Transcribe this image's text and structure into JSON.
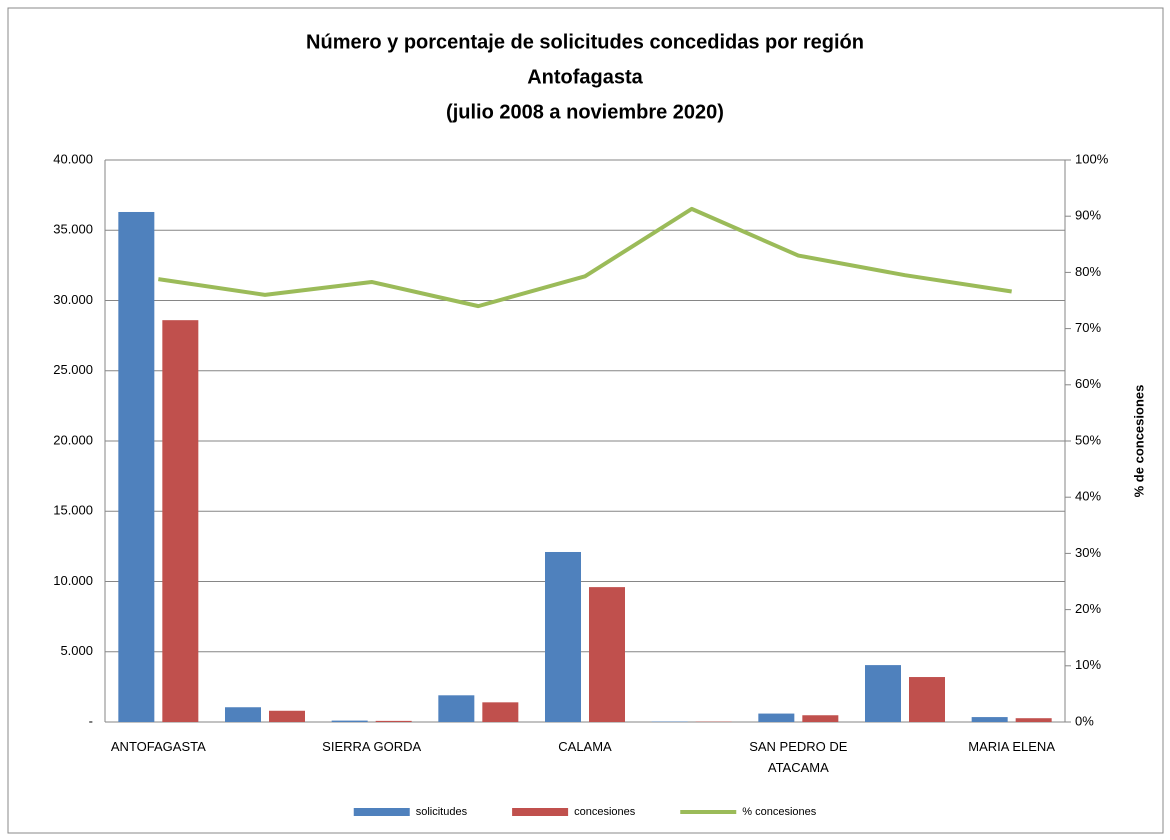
{
  "chart_data": {
    "type": "bar",
    "title": [
      "Número y porcentaje de solicitudes concedidas por región",
      "Antofagasta",
      "(julio 2008 a  noviembre 2020)"
    ],
    "y2_label": "% de concesiones",
    "categories": [
      "ANTOFAGASTA",
      null,
      "SIERRA GORDA",
      null,
      "CALAMA",
      null,
      "SAN PEDRO DE ATACAMA",
      null,
      "MARIA ELENA"
    ],
    "series": [
      {
        "name": "solicitudes",
        "type": "bar",
        "color": "#4f81bd",
        "values": [
          36300,
          1050,
          100,
          1900,
          12100,
          30,
          600,
          4050,
          350
        ]
      },
      {
        "name": "concesiones",
        "type": "bar",
        "color": "#c0504d",
        "values": [
          28600,
          800,
          80,
          1400,
          9600,
          25,
          480,
          3200,
          270
        ]
      },
      {
        "name": "% concesiones",
        "type": "line",
        "axis": "y2",
        "color": "#9bbb59",
        "values": [
          78.8,
          76,
          78.3,
          74,
          79.3,
          91.3,
          83,
          79.5,
          76.6
        ]
      }
    ],
    "ylim": [
      0,
      40000
    ],
    "yticks": [
      {
        "value": 0,
        "label": "-"
      },
      {
        "value": 5000,
        "label": "5.000"
      },
      {
        "value": 10000,
        "label": "10.000"
      },
      {
        "value": 15000,
        "label": "15.000"
      },
      {
        "value": 20000,
        "label": "20.000"
      },
      {
        "value": 25000,
        "label": "25.000"
      },
      {
        "value": 30000,
        "label": "30.000"
      },
      {
        "value": 35000,
        "label": "35.000"
      },
      {
        "value": 40000,
        "label": "40.000"
      }
    ],
    "y2lim": [
      0,
      100
    ],
    "y2ticks": [
      {
        "value": 0,
        "label": "0%"
      },
      {
        "value": 10,
        "label": "10%"
      },
      {
        "value": 20,
        "label": "20%"
      },
      {
        "value": 30,
        "label": "30%"
      },
      {
        "value": 40,
        "label": "40%"
      },
      {
        "value": 50,
        "label": "50%"
      },
      {
        "value": 60,
        "label": "60%"
      },
      {
        "value": 70,
        "label": "70%"
      },
      {
        "value": 80,
        "label": "80%"
      },
      {
        "value": 90,
        "label": "90%"
      },
      {
        "value": 100,
        "label": "100%"
      }
    ],
    "grid": true,
    "legend": "bottom"
  }
}
